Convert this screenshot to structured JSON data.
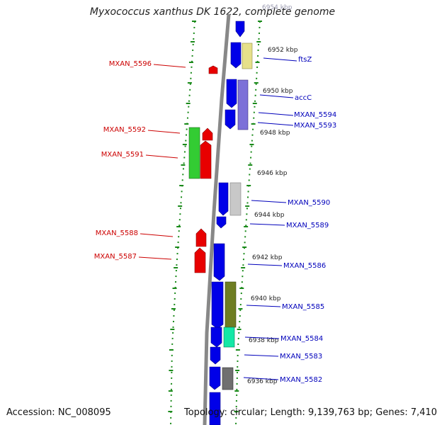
{
  "title": "Myxococcus xanthus DK 1622, complete genome",
  "footer": {
    "accession": "Accession: NC_008095",
    "stats": "Topology: circular; Length: 9,139,763 bp; Genes: 7,410"
  },
  "colors": {
    "reverse_strand": "#e80000",
    "forward_strand": "#0000e8",
    "backbone": "#888888",
    "tick": "#1a8a1a",
    "left_label": "#cc0000",
    "right_label": "#0000bb"
  },
  "ruler_labels": [
    "6954 kbp",
    "6952 kbp",
    "6950 kbp",
    "6948 kbp",
    "6946 kbp",
    "6944 kbp",
    "6942 kbp",
    "6940 kbp",
    "6938 kbp",
    "6936 kbp"
  ],
  "genes_left": [
    {
      "label": "MXAN_5596"
    },
    {
      "label": "MXAN_5592"
    },
    {
      "label": "MXAN_5591"
    },
    {
      "label": "MXAN_5588"
    },
    {
      "label": "MXAN_5587"
    }
  ],
  "genes_right": [
    {
      "label": "ftsZ"
    },
    {
      "label": "accC"
    },
    {
      "label": "MXAN_5594"
    },
    {
      "label": "MXAN_5593"
    },
    {
      "label": "MXAN_5590"
    },
    {
      "label": "MXAN_5589"
    },
    {
      "label": "MXAN_5586"
    },
    {
      "label": "MXAN_5585"
    },
    {
      "label": "MXAN_5584"
    },
    {
      "label": "MXAN_5583"
    },
    {
      "label": "MXAN_5582"
    }
  ]
}
